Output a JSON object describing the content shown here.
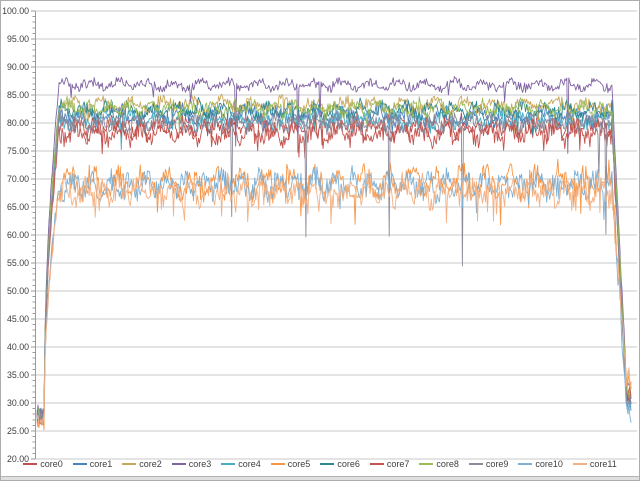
{
  "frame": {
    "background": "#FFFFFF",
    "border_color": "#ADADAD",
    "grid_color": "#C9C9C9",
    "axis_color": "#9B9B9B",
    "label_color": "#3F3F3F"
  },
  "chart_data": {
    "type": "line",
    "title": "",
    "xlabel": "",
    "ylabel": "",
    "ylim": [
      20,
      100
    ],
    "ytick_step": 5,
    "ytick_labels": [
      "100.00",
      "95.00",
      "90.00",
      "85.00",
      "80.00",
      "75.00",
      "70.00",
      "65.00",
      "60.00",
      "55.00",
      "50.00",
      "45.00",
      "40.00",
      "35.00",
      "30.00",
      "25.00",
      "20.00"
    ],
    "grid": "horizontal-major",
    "x_axis_labels_visible": false,
    "legend_position": "bottom",
    "n_samples": 592,
    "phases": {
      "flat_start_end_frac": 0.012,
      "ramp_end_frac": 0.037,
      "drop_start_frac": 0.968
    },
    "series": [
      {
        "name": "core0",
        "color": "#C0504D",
        "start": 27.5,
        "steady": 79.3,
        "noise": 1.9,
        "dip_chance": 0.02,
        "dip_depth": 4,
        "end": 31
      },
      {
        "name": "core1",
        "color": "#4F81BD",
        "start": 28,
        "steady": 81.3,
        "noise": 1.7,
        "dip_chance": 0.015,
        "dip_depth": 4,
        "end": 30
      },
      {
        "name": "core2",
        "color": "#C9A85C",
        "start": 27,
        "steady": 83.2,
        "noise": 1.4,
        "dip_chance": 0.015,
        "dip_depth": 4,
        "end": 32
      },
      {
        "name": "core3",
        "color": "#8064A2",
        "start": 28.5,
        "steady": 86.8,
        "noise": 1.1,
        "dip_chance": 0.008,
        "dip_depth": 14,
        "end": 33
      },
      {
        "name": "core4",
        "color": "#4BACC6",
        "start": 27.5,
        "steady": 80.6,
        "noise": 1.8,
        "dip_chance": 0.015,
        "dip_depth": 4,
        "end": 29.5
      },
      {
        "name": "core5",
        "color": "#F79646",
        "start": 26.5,
        "steady": 69.5,
        "noise": 2.7,
        "dip_chance": 0.06,
        "dip_depth": 6,
        "end": 33
      },
      {
        "name": "core6",
        "color": "#2F8794",
        "start": 28,
        "steady": 82.2,
        "noise": 1.6,
        "dip_chance": 0.012,
        "dip_depth": 5,
        "end": 30.5
      },
      {
        "name": "core7",
        "color": "#C4544F",
        "start": 27,
        "steady": 78.3,
        "noise": 2.2,
        "dip_chance": 0.04,
        "dip_depth": 4.5,
        "end": 31.5
      },
      {
        "name": "core8",
        "color": "#9BBB59",
        "start": 28,
        "steady": 82.6,
        "noise": 1.5,
        "dip_chance": 0.012,
        "dip_depth": 4,
        "end": 32
      },
      {
        "name": "core9",
        "color": "#8B8B9B",
        "start": 27.5,
        "steady": 80.0,
        "noise": 1.6,
        "dip_chance": 0.005,
        "dip_depth": 25,
        "end": 30
      },
      {
        "name": "core10",
        "color": "#7EB0D5",
        "start": 27,
        "steady": 69.0,
        "noise": 2.4,
        "dip_chance": 0.04,
        "dip_depth": 5,
        "end": 28.5
      },
      {
        "name": "core11",
        "color": "#F4B183",
        "start": 26.5,
        "steady": 67.8,
        "noise": 2.6,
        "dip_chance": 0.06,
        "dip_depth": 6,
        "end": 34
      }
    ]
  }
}
